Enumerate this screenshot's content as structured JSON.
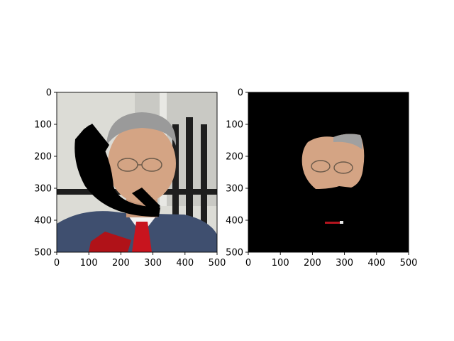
{
  "figure": {
    "background": "#ffffff",
    "text_color": "#000000"
  },
  "chart_data": [
    {
      "type": "image",
      "content": "photo of a grey-haired man in glasses, suit and red tie, with a black curved occlusion over the lower-left face",
      "xlim": [
        0,
        500
      ],
      "ylim": [
        500,
        0
      ],
      "xticks": [
        0,
        100,
        200,
        300,
        400,
        500
      ],
      "yticks": [
        0,
        100,
        200,
        300,
        400,
        500
      ],
      "xtick_labels": [
        "0",
        "100",
        "200",
        "300",
        "400",
        "500"
      ],
      "ytick_labels": [
        "0",
        "100",
        "200",
        "300",
        "400",
        "500"
      ],
      "grid": false,
      "colors": {
        "background_wall": "#dcdcd6",
        "suit": "#3f4f6f",
        "tie": "#c8141e",
        "skin": "#d4a484",
        "hair": "#9a9a9a",
        "occluder": "#000000"
      }
    },
    {
      "type": "image",
      "content": "segmentation mask on black background showing only the face region and a small red fragment",
      "xlim": [
        0,
        500
      ],
      "ylim": [
        500,
        0
      ],
      "xticks": [
        0,
        100,
        200,
        300,
        400,
        500
      ],
      "yticks": [
        0,
        100,
        200,
        300,
        400,
        500
      ],
      "xtick_labels": [
        "0",
        "100",
        "200",
        "300",
        "400",
        "500"
      ],
      "ytick_labels": [
        "0",
        "100",
        "200",
        "300",
        "400",
        "500"
      ],
      "grid": false,
      "colors": {
        "background": "#000000",
        "skin": "#d4a484",
        "hair": "#a0a0a0",
        "fragment": "#b4141e"
      }
    }
  ]
}
